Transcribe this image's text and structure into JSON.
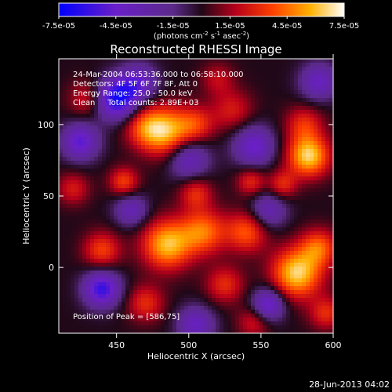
{
  "chart_data": {
    "type": "heatmap",
    "title": "Reconstructed RHESSI Image",
    "xlabel": "Heliocentric X (arcsec)",
    "ylabel": "Heliocentric Y (arcsec)",
    "xlim": [
      410,
      600
    ],
    "ylim": [
      -46,
      146
    ],
    "x_ticks": [
      450,
      500,
      550,
      600
    ],
    "y_ticks": [
      0,
      50,
      100
    ],
    "colorbar": {
      "range": [
        -7.5e-05,
        7.5e-05
      ],
      "tick_labels": [
        "-7.5e-05",
        "-4.5e-05",
        "-1.5e-05",
        "1.5e-05",
        "4.5e-05",
        "7.5e-05"
      ],
      "units_label": "(photons cm",
      "units_exp1": "-2",
      "units_mid": " s",
      "units_exp2": "-1",
      "units_after": " asec",
      "units_exp3": "-2",
      "units_close": ")",
      "colormap": [
        [
          0.0,
          "#0000ff"
        ],
        [
          0.2,
          "#6a1fc8"
        ],
        [
          0.4,
          "#5b2a8a"
        ],
        [
          0.5,
          "#200818"
        ],
        [
          0.62,
          "#b8001a"
        ],
        [
          0.75,
          "#ff4000"
        ],
        [
          0.88,
          "#ffb000"
        ],
        [
          1.0,
          "#ffffff"
        ]
      ]
    },
    "features": [
      {
        "x": 450,
        "y": 118,
        "sigma": 10,
        "value": -7e-05
      },
      {
        "x": 485,
        "y": 95,
        "sigma": 12,
        "value": 5.5e-05
      },
      {
        "x": 470,
        "y": 98,
        "sigma": 10,
        "value": 3.5e-05
      },
      {
        "x": 505,
        "y": 100,
        "sigma": 9,
        "value": 3e-05
      },
      {
        "x": 530,
        "y": 110,
        "sigma": 10,
        "value": 2.5e-05
      },
      {
        "x": 430,
        "y": 118,
        "sigma": 9,
        "value": 2.5e-05
      },
      {
        "x": 583,
        "y": 78,
        "sigma": 10,
        "value": 6.5e-05
      },
      {
        "x": 580,
        "y": 100,
        "sigma": 9,
        "value": 3e-05
      },
      {
        "x": 520,
        "y": 132,
        "sigma": 8,
        "value": 2e-05
      },
      {
        "x": 455,
        "y": 60,
        "sigma": 7,
        "value": 3.5e-05
      },
      {
        "x": 505,
        "y": 52,
        "sigma": 8,
        "value": 3e-05
      },
      {
        "x": 543,
        "y": 60,
        "sigma": 7,
        "value": 3e-05
      },
      {
        "x": 565,
        "y": 58,
        "sigma": 7,
        "value": 3e-05
      },
      {
        "x": 420,
        "y": 55,
        "sigma": 8,
        "value": 2.5e-05
      },
      {
        "x": 440,
        "y": 12,
        "sigma": 9,
        "value": 3.5e-05
      },
      {
        "x": 485,
        "y": 16,
        "sigma": 12,
        "value": 6e-05
      },
      {
        "x": 510,
        "y": 25,
        "sigma": 11,
        "value": 4.5e-05
      },
      {
        "x": 540,
        "y": 25,
        "sigma": 10,
        "value": 4e-05
      },
      {
        "x": 575,
        "y": -4,
        "sigma": 12,
        "value": 6.5e-05
      },
      {
        "x": 590,
        "y": 14,
        "sigma": 9,
        "value": 4e-05
      },
      {
        "x": 525,
        "y": -12,
        "sigma": 9,
        "value": 3e-05
      },
      {
        "x": 470,
        "y": -25,
        "sigma": 9,
        "value": 3e-05
      },
      {
        "x": 545,
        "y": -38,
        "sigma": 8,
        "value": 2.5e-05
      },
      {
        "x": 595,
        "y": -32,
        "sigma": 8,
        "value": 3e-05
      },
      {
        "x": 425,
        "y": 88,
        "sigma": 9,
        "value": -5e-05
      },
      {
        "x": 500,
        "y": 76,
        "sigma": 10,
        "value": -4e-05
      },
      {
        "x": 545,
        "y": 85,
        "sigma": 10,
        "value": -4.5e-05
      },
      {
        "x": 555,
        "y": 40,
        "sigma": 9,
        "value": -3.5e-05
      },
      {
        "x": 440,
        "y": -15,
        "sigma": 9,
        "value": -6e-05
      },
      {
        "x": 555,
        "y": -26,
        "sigma": 8,
        "value": -5e-05
      },
      {
        "x": 505,
        "y": -40,
        "sigma": 9,
        "value": -4e-05
      },
      {
        "x": 465,
        "y": 130,
        "sigma": 9,
        "value": -4e-05
      },
      {
        "x": 590,
        "y": 130,
        "sigma": 9,
        "value": -4e-05
      },
      {
        "x": 460,
        "y": 40,
        "sigma": 8,
        "value": -3.5e-05
      }
    ],
    "peak_position": [
      586,
      75
    ]
  },
  "info": {
    "line1": "24-Mar-2004 06:53:36.000 to 06:58:10.000",
    "line2": "Detectors: 4F 5F 6F 7F 8F, Att 0",
    "line3": "Energy Range: 25.0 - 50.0 keV",
    "line4": "Clean     Total counts: 2.89E+03",
    "peak_label": "Position of Peak = [586,75]"
  },
  "footer": {
    "date": "28-Jun-2013 04:02"
  }
}
